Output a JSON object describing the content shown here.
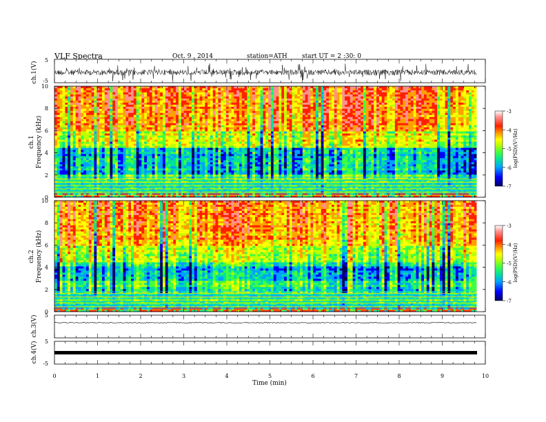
{
  "header": {
    "title": "VLF Spectra",
    "date": "Oct. 9 , 2014",
    "station": "station=ATH",
    "start": "start UT = 2 :30: 0"
  },
  "chart_data": [
    {
      "type": "line",
      "ylabel": "ch.1(V)",
      "yticks": [
        "5",
        "-5"
      ],
      "ylim": [
        -5,
        5
      ],
      "description_series": "broadband waveform, large noisy envelope centred near 0",
      "x_range": [
        0,
        9.8
      ]
    },
    {
      "type": "heatmap",
      "channel_label": "ch.1",
      "ylabel": "Frequency (kHz)",
      "yticks": [
        "0",
        "2",
        "4",
        "6",
        "8",
        "10"
      ],
      "ylim": [
        0,
        10
      ],
      "colorbar": {
        "label": "log(PSD)(V²/Hz)",
        "ticks": [
          "-3",
          "-4",
          "-5",
          "-6",
          "-7"
        ],
        "range": [
          -7,
          -3
        ],
        "colors": [
          "#000060",
          "#0000ff",
          "#00a0ff",
          "#00e0a0",
          "#40ff40",
          "#c0ff00",
          "#ffff00",
          "#ffa000",
          "#ff2000",
          "#ff9090",
          "#ffffff"
        ]
      },
      "x_range": [
        0,
        9.8
      ]
    },
    {
      "type": "heatmap",
      "channel_label": "ch.2",
      "ylabel": "Frequency (kHz)",
      "yticks": [
        "0",
        "2",
        "4",
        "6",
        "8",
        "10"
      ],
      "ylim": [
        0,
        10
      ],
      "colorbar": {
        "label": "log(PSD)(V²/Hz)",
        "ticks": [
          "-3",
          "-4",
          "-5",
          "-6",
          "-7"
        ],
        "range": [
          -7,
          -3
        ]
      },
      "x_range": [
        0,
        9.8
      ]
    },
    {
      "type": "line",
      "ylabel": "ch.3(V)",
      "yticks": [
        "5",
        "-5"
      ],
      "ylim": [
        -5,
        5
      ],
      "value_level": 0,
      "x_range": [
        0,
        9.8
      ]
    },
    {
      "type": "line",
      "ylabel": "ch.4(V)",
      "yticks": [
        "5",
        "-5"
      ],
      "ylim": [
        -5,
        5
      ],
      "value_level": 0,
      "x_range": [
        0,
        9.8
      ]
    }
  ],
  "xaxis": {
    "label": "Time (min)",
    "ticks": [
      "0",
      "1",
      "2",
      "3",
      "4",
      "5",
      "6",
      "7",
      "8",
      "9",
      "10"
    ],
    "xlim": [
      0,
      10
    ]
  }
}
